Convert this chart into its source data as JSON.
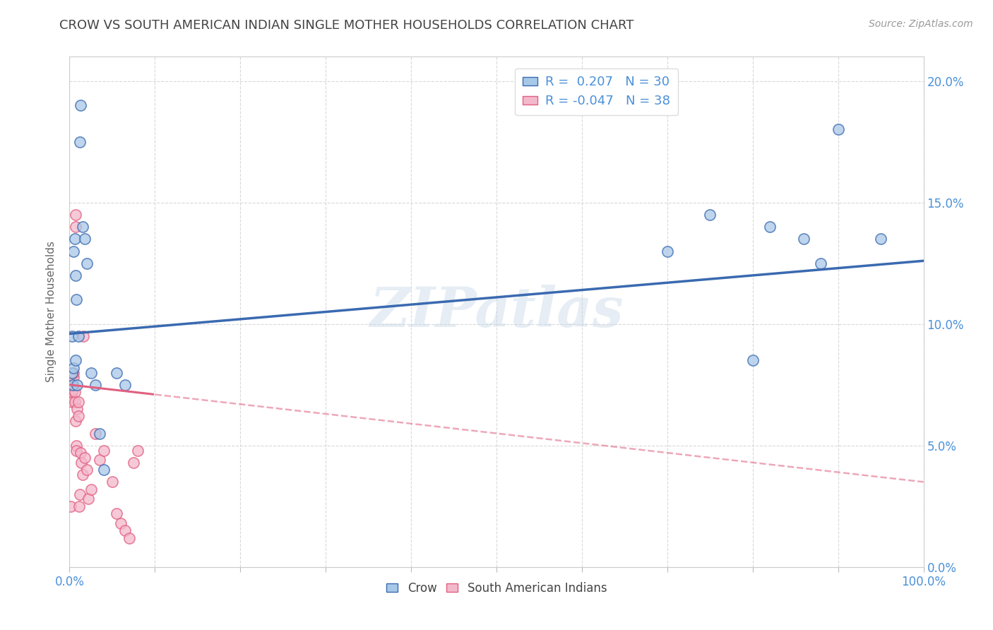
{
  "title": "CROW VS SOUTH AMERICAN INDIAN SINGLE MOTHER HOUSEHOLDS CORRELATION CHART",
  "source": "Source: ZipAtlas.com",
  "ylabel": "Single Mother Households",
  "watermark": "ZIPatlas",
  "crow_R": 0.207,
  "crow_N": 30,
  "sai_R": -0.047,
  "sai_N": 38,
  "crow_color": "#a8c8e8",
  "sai_color": "#f4b8cc",
  "crow_line_color": "#3a6ab0",
  "sai_line_color": "#e06080",
  "background_color": "#ffffff",
  "grid_color": "#d0d0d0",
  "title_color": "#444444",
  "axis_label_color": "#4a90d9",
  "tick_color": "#888888",
  "xlim": [
    0.0,
    1.0
  ],
  "ylim": [
    0.0,
    0.21
  ],
  "crow_x": [
    0.003,
    0.003,
    0.004,
    0.005,
    0.005,
    0.006,
    0.007,
    0.007,
    0.008,
    0.009,
    0.01,
    0.012,
    0.013,
    0.015,
    0.018,
    0.02,
    0.025,
    0.03,
    0.035,
    0.04,
    0.055,
    0.065,
    0.7,
    0.75,
    0.8,
    0.82,
    0.86,
    0.88,
    0.9,
    0.95
  ],
  "crow_y": [
    0.095,
    0.08,
    0.075,
    0.082,
    0.13,
    0.135,
    0.12,
    0.085,
    0.11,
    0.075,
    0.095,
    0.175,
    0.19,
    0.14,
    0.135,
    0.125,
    0.08,
    0.075,
    0.055,
    0.04,
    0.08,
    0.075,
    0.13,
    0.145,
    0.085,
    0.14,
    0.135,
    0.125,
    0.18,
    0.135
  ],
  "sai_x": [
    0.001,
    0.002,
    0.003,
    0.003,
    0.004,
    0.004,
    0.005,
    0.005,
    0.006,
    0.006,
    0.007,
    0.007,
    0.007,
    0.008,
    0.008,
    0.009,
    0.01,
    0.01,
    0.011,
    0.012,
    0.013,
    0.014,
    0.015,
    0.016,
    0.018,
    0.02,
    0.022,
    0.025,
    0.03,
    0.035,
    0.04,
    0.05,
    0.055,
    0.06,
    0.065,
    0.07,
    0.075,
    0.08
  ],
  "sai_y": [
    0.025,
    0.07,
    0.072,
    0.068,
    0.073,
    0.075,
    0.078,
    0.08,
    0.072,
    0.068,
    0.14,
    0.145,
    0.06,
    0.05,
    0.048,
    0.065,
    0.068,
    0.062,
    0.025,
    0.03,
    0.047,
    0.043,
    0.038,
    0.095,
    0.045,
    0.04,
    0.028,
    0.032,
    0.055,
    0.044,
    0.048,
    0.035,
    0.022,
    0.018,
    0.015,
    0.012,
    0.043,
    0.048
  ],
  "marker_size": 120,
  "marker_alpha": 0.75,
  "sai_line_solid_end": 0.1,
  "sai_line_dashed_end": 1.0,
  "crow_intercept": 0.096,
  "crow_slope": 0.03,
  "sai_intercept": 0.075,
  "sai_slope": -0.04
}
